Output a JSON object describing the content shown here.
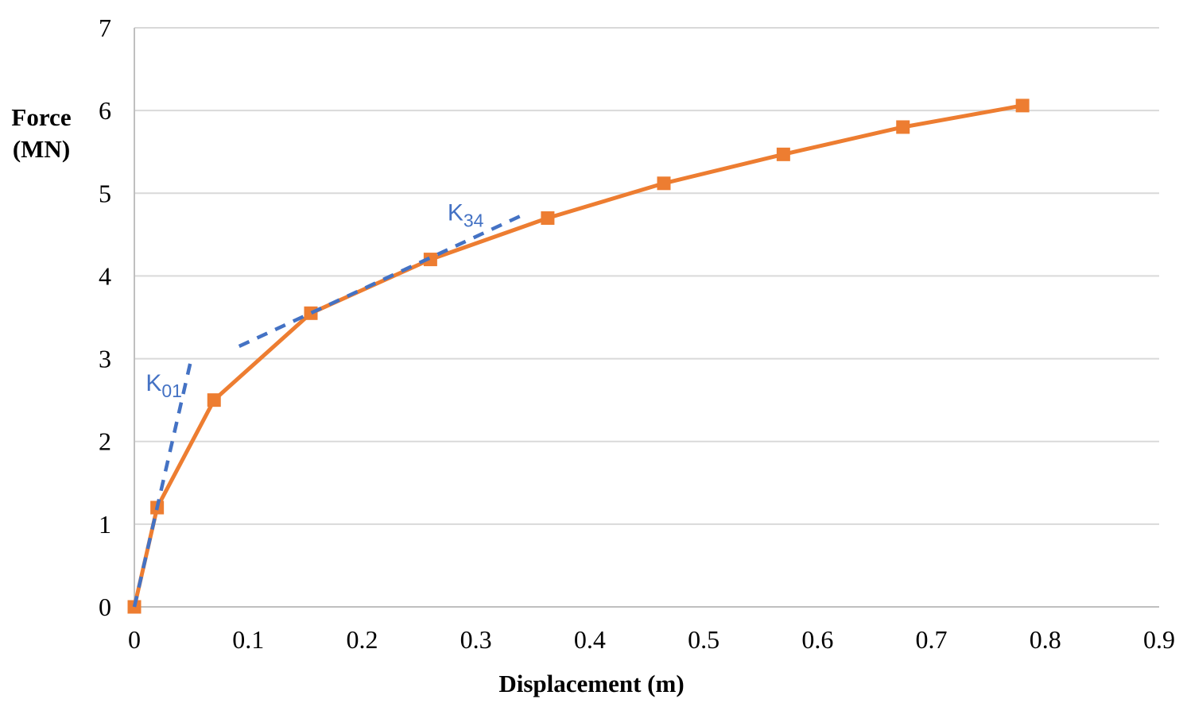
{
  "chart_data": {
    "type": "line",
    "title": "",
    "xlabel": "Displacement (m)",
    "ylabel": "Force (MN)",
    "ylabel_lines": [
      "Force",
      "(MN)"
    ],
    "xlim": [
      0,
      0.9
    ],
    "ylim": [
      0,
      7
    ],
    "xticks": {
      "values": [
        0,
        0.1,
        0.2,
        0.3,
        0.4,
        0.5,
        0.6,
        0.7,
        0.8,
        0.9
      ],
      "labels": [
        "0",
        "0.1",
        "0.2",
        "0.3",
        "0.4",
        "0.5",
        "0.6",
        "0.7",
        "0.8",
        "0.9"
      ]
    },
    "yticks": {
      "values": [
        0,
        1,
        2,
        3,
        4,
        5,
        6,
        7
      ],
      "labels": [
        "0",
        "1",
        "2",
        "3",
        "4",
        "5",
        "6",
        "7"
      ]
    },
    "grid": "horizontal",
    "legend": "none",
    "colors": {
      "series": "#ED7D31",
      "overlay": "#4472C4",
      "gridline": "#D9D9D9",
      "axis": "#BFBFBF",
      "text": "#000000"
    },
    "series": [
      {
        "name": "force-displacement-curve",
        "marker": "square",
        "x": [
          0,
          0.02,
          0.07,
          0.155,
          0.26,
          0.363,
          0.465,
          0.57,
          0.675,
          0.78
        ],
        "y": [
          0,
          1.2,
          2.5,
          3.55,
          4.2,
          4.7,
          5.12,
          5.47,
          5.8,
          6.06
        ]
      }
    ],
    "overlays": [
      {
        "name": "K01-initial-stiffness-line",
        "style": "dashed",
        "x": [
          0,
          0.05
        ],
        "y": [
          0,
          3.0
        ],
        "label": {
          "base": "K",
          "sub": "01",
          "x": 0.01,
          "y": 2.61
        }
      },
      {
        "name": "K34-secant-stiffness-line",
        "style": "dashed",
        "x": [
          0.092,
          0.343
        ],
        "y": [
          3.15,
          4.75
        ],
        "label": {
          "base": "K",
          "sub": "34",
          "x": 0.275,
          "y": 4.67
        }
      }
    ]
  }
}
